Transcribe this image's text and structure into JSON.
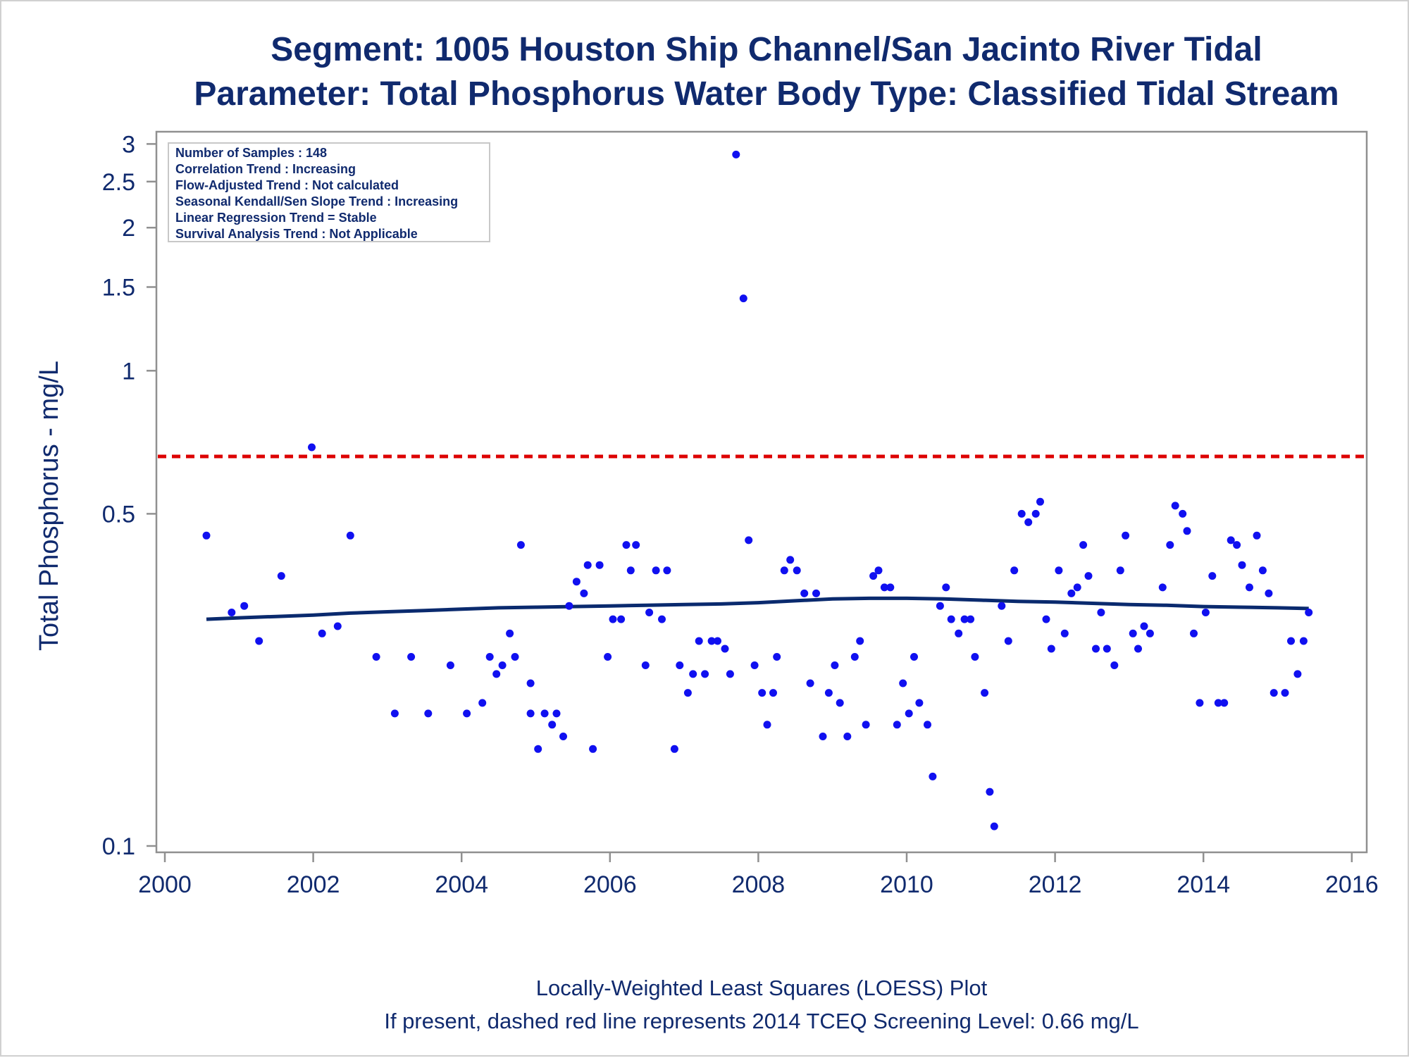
{
  "titles": {
    "line1": "Segment: 1005  Houston Ship Channel/San Jacinto River Tidal",
    "line2": "Parameter: Total Phosphorus   Water Body Type: Classified Tidal Stream"
  },
  "footer": {
    "line1": "Locally-Weighted Least Squares (LOESS) Plot",
    "line2": "If present, dashed red line represents 2014 TCEQ Screening Level: 0.66 mg/L"
  },
  "info_box": [
    "Number of Samples : 148",
    "Correlation Trend : Increasing",
    "Flow-Adjusted Trend : Not calculated",
    "Seasonal Kendall/Sen Slope Trend : Increasing",
    "Linear Regression Trend = Stable",
    "Survival Analysis Trend : Not Applicable"
  ],
  "colors": {
    "points": "#1010f0",
    "loess": "#0a2a6e",
    "screening": "#dd0000",
    "text": "#102a6e"
  },
  "chart_data": {
    "type": "scatter",
    "ylabel": "Total Phosphorus - mg/L",
    "yscale": "log",
    "xlim": [
      2000,
      2016
    ],
    "ylim": [
      0.095,
      3.3
    ],
    "x_ticks": [
      2000,
      2002,
      2004,
      2006,
      2008,
      2010,
      2012,
      2014,
      2016
    ],
    "x_tick_labels": [
      "2000",
      "2002",
      "2004",
      "2006",
      "2008",
      "2010",
      "2012",
      "2014",
      "2016"
    ],
    "y_ticks": [
      0.1,
      0.5,
      1,
      1.5,
      2,
      2.5,
      3
    ],
    "y_tick_labels": [
      "0.1",
      "0.5",
      "1",
      "1.5",
      "2",
      "2.5",
      "3"
    ],
    "screening_level": 0.66,
    "points": [
      [
        2000.56,
        0.45
      ],
      [
        2000.9,
        0.31
      ],
      [
        2001.07,
        0.32
      ],
      [
        2001.27,
        0.27
      ],
      [
        2001.57,
        0.37
      ],
      [
        2001.98,
        0.69
      ],
      [
        2002.12,
        0.28
      ],
      [
        2002.33,
        0.29
      ],
      [
        2002.5,
        0.45
      ],
      [
        2002.85,
        0.25
      ],
      [
        2003.1,
        0.19
      ],
      [
        2003.32,
        0.25
      ],
      [
        2003.55,
        0.19
      ],
      [
        2003.85,
        0.24
      ],
      [
        2004.07,
        0.19
      ],
      [
        2004.28,
        0.2
      ],
      [
        2004.38,
        0.25
      ],
      [
        2004.47,
        0.23
      ],
      [
        2004.55,
        0.24
      ],
      [
        2004.65,
        0.28
      ],
      [
        2004.72,
        0.25
      ],
      [
        2004.8,
        0.43
      ],
      [
        2004.93,
        0.22
      ],
      [
        2004.93,
        0.19
      ],
      [
        2005.03,
        0.16
      ],
      [
        2005.12,
        0.19
      ],
      [
        2005.22,
        0.18
      ],
      [
        2005.28,
        0.19
      ],
      [
        2005.37,
        0.17
      ],
      [
        2005.45,
        0.32
      ],
      [
        2005.55,
        0.36
      ],
      [
        2005.65,
        0.34
      ],
      [
        2005.7,
        0.39
      ],
      [
        2005.77,
        0.16
      ],
      [
        2005.86,
        0.39
      ],
      [
        2005.97,
        0.25
      ],
      [
        2006.04,
        0.3
      ],
      [
        2006.15,
        0.3
      ],
      [
        2006.22,
        0.43
      ],
      [
        2006.28,
        0.38
      ],
      [
        2006.35,
        0.43
      ],
      [
        2006.48,
        0.24
      ],
      [
        2006.53,
        0.31
      ],
      [
        2006.62,
        0.38
      ],
      [
        2006.7,
        0.3
      ],
      [
        2006.77,
        0.38
      ],
      [
        2006.87,
        0.16
      ],
      [
        2006.94,
        0.24
      ],
      [
        2007.05,
        0.21
      ],
      [
        2007.12,
        0.23
      ],
      [
        2007.2,
        0.27
      ],
      [
        2007.28,
        0.23
      ],
      [
        2007.37,
        0.27
      ],
      [
        2007.45,
        0.27
      ],
      [
        2007.55,
        0.26
      ],
      [
        2007.62,
        0.23
      ],
      [
        2007.7,
        2.85
      ],
      [
        2007.8,
        1.42
      ],
      [
        2007.87,
        0.44
      ],
      [
        2007.95,
        0.24
      ],
      [
        2008.05,
        0.21
      ],
      [
        2008.12,
        0.18
      ],
      [
        2008.2,
        0.21
      ],
      [
        2008.25,
        0.25
      ],
      [
        2008.35,
        0.38
      ],
      [
        2008.43,
        0.4
      ],
      [
        2008.52,
        0.38
      ],
      [
        2008.62,
        0.34
      ],
      [
        2008.7,
        0.22
      ],
      [
        2008.78,
        0.34
      ],
      [
        2008.87,
        0.17
      ],
      [
        2008.95,
        0.21
      ],
      [
        2009.03,
        0.24
      ],
      [
        2009.1,
        0.2
      ],
      [
        2009.2,
        0.17
      ],
      [
        2009.3,
        0.25
      ],
      [
        2009.37,
        0.27
      ],
      [
        2009.45,
        0.18
      ],
      [
        2009.55,
        0.37
      ],
      [
        2009.62,
        0.38
      ],
      [
        2009.7,
        0.35
      ],
      [
        2009.78,
        0.35
      ],
      [
        2009.87,
        0.18
      ],
      [
        2009.95,
        0.22
      ],
      [
        2010.03,
        0.19
      ],
      [
        2010.1,
        0.25
      ],
      [
        2010.17,
        0.2
      ],
      [
        2010.28,
        0.18
      ],
      [
        2010.35,
        0.14
      ],
      [
        2010.45,
        0.32
      ],
      [
        2010.53,
        0.35
      ],
      [
        2010.6,
        0.3
      ],
      [
        2010.7,
        0.28
      ],
      [
        2010.78,
        0.3
      ],
      [
        2010.86,
        0.3
      ],
      [
        2010.92,
        0.25
      ],
      [
        2011.05,
        0.21
      ],
      [
        2011.12,
        0.13
      ],
      [
        2011.18,
        0.11
      ],
      [
        2011.28,
        0.32
      ],
      [
        2011.37,
        0.27
      ],
      [
        2011.45,
        0.38
      ],
      [
        2011.55,
        0.5
      ],
      [
        2011.64,
        0.48
      ],
      [
        2011.74,
        0.5
      ],
      [
        2011.8,
        0.53
      ],
      [
        2011.88,
        0.3
      ],
      [
        2011.95,
        0.26
      ],
      [
        2012.05,
        0.38
      ],
      [
        2012.13,
        0.28
      ],
      [
        2012.22,
        0.34
      ],
      [
        2012.3,
        0.35
      ],
      [
        2012.38,
        0.43
      ],
      [
        2012.45,
        0.37
      ],
      [
        2012.55,
        0.26
      ],
      [
        2012.62,
        0.31
      ],
      [
        2012.7,
        0.26
      ],
      [
        2012.8,
        0.24
      ],
      [
        2012.88,
        0.38
      ],
      [
        2012.95,
        0.45
      ],
      [
        2013.05,
        0.28
      ],
      [
        2013.12,
        0.26
      ],
      [
        2013.2,
        0.29
      ],
      [
        2013.28,
        0.28
      ],
      [
        2013.45,
        0.35
      ],
      [
        2013.55,
        0.43
      ],
      [
        2013.62,
        0.52
      ],
      [
        2013.72,
        0.5
      ],
      [
        2013.78,
        0.46
      ],
      [
        2013.87,
        0.28
      ],
      [
        2013.95,
        0.2
      ],
      [
        2014.03,
        0.31
      ],
      [
        2014.12,
        0.37
      ],
      [
        2014.2,
        0.2
      ],
      [
        2014.28,
        0.2
      ],
      [
        2014.37,
        0.44
      ],
      [
        2014.45,
        0.43
      ],
      [
        2014.52,
        0.39
      ],
      [
        2014.62,
        0.35
      ],
      [
        2014.72,
        0.45
      ],
      [
        2014.8,
        0.38
      ],
      [
        2014.88,
        0.34
      ],
      [
        2014.95,
        0.21
      ],
      [
        2015.1,
        0.21
      ],
      [
        2015.18,
        0.27
      ],
      [
        2015.27,
        0.23
      ],
      [
        2015.35,
        0.27
      ],
      [
        2015.42,
        0.31
      ]
    ],
    "loess": [
      [
        2000.56,
        0.3
      ],
      [
        2001.0,
        0.302
      ],
      [
        2001.5,
        0.304
      ],
      [
        2002.0,
        0.306
      ],
      [
        2002.5,
        0.309
      ],
      [
        2003.0,
        0.311
      ],
      [
        2003.5,
        0.313
      ],
      [
        2004.0,
        0.315
      ],
      [
        2004.5,
        0.317
      ],
      [
        2005.0,
        0.318
      ],
      [
        2005.5,
        0.319
      ],
      [
        2006.0,
        0.32
      ],
      [
        2006.5,
        0.321
      ],
      [
        2007.0,
        0.322
      ],
      [
        2007.5,
        0.323
      ],
      [
        2008.0,
        0.325
      ],
      [
        2008.5,
        0.328
      ],
      [
        2009.0,
        0.331
      ],
      [
        2009.5,
        0.332
      ],
      [
        2010.0,
        0.332
      ],
      [
        2010.5,
        0.331
      ],
      [
        2011.0,
        0.329
      ],
      [
        2011.5,
        0.327
      ],
      [
        2012.0,
        0.326
      ],
      [
        2012.5,
        0.324
      ],
      [
        2013.0,
        0.322
      ],
      [
        2013.5,
        0.321
      ],
      [
        2014.0,
        0.319
      ],
      [
        2014.5,
        0.318
      ],
      [
        2015.0,
        0.317
      ],
      [
        2015.42,
        0.316
      ]
    ]
  }
}
